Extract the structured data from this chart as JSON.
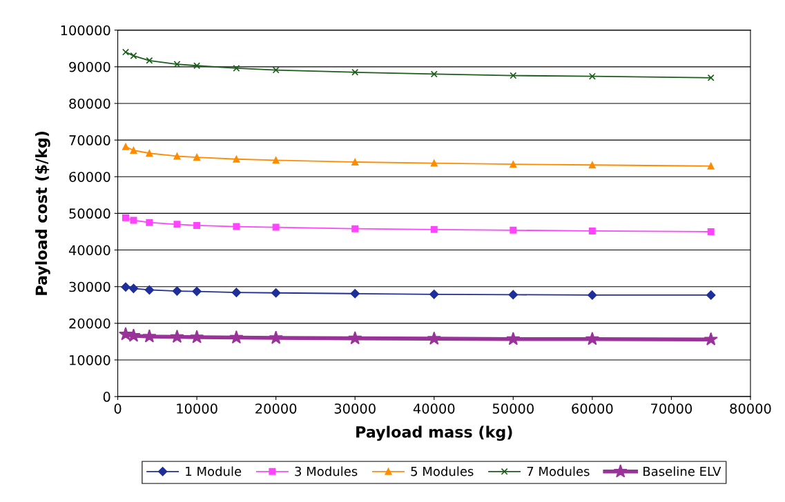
{
  "chart_data": {
    "type": "line",
    "xlabel": "Payload mass (kg)",
    "ylabel": "Payload cost ($/kg)",
    "x": [
      1000,
      2000,
      4000,
      7500,
      10000,
      15000,
      20000,
      30000,
      40000,
      50000,
      60000,
      75000
    ],
    "xlim": [
      0,
      80000
    ],
    "xticks": [
      0,
      10000,
      20000,
      30000,
      40000,
      50000,
      60000,
      70000,
      80000
    ],
    "ylim": [
      0,
      100000
    ],
    "yticks": [
      0,
      10000,
      20000,
      30000,
      40000,
      50000,
      60000,
      70000,
      80000,
      90000,
      100000
    ],
    "grid": "y",
    "legend": "bottom",
    "line_style": "solid",
    "series": [
      {
        "name": "1 Module",
        "color": "#1f2f9a",
        "marker": "diamond",
        "values": [
          29900,
          29500,
          29100,
          28800,
          28700,
          28400,
          28300,
          28100,
          27900,
          27800,
          27700,
          27700
        ]
      },
      {
        "name": "3 Modules",
        "color": "#ff44ff",
        "marker": "square",
        "values": [
          48800,
          48100,
          47500,
          47000,
          46700,
          46400,
          46200,
          45800,
          45600,
          45400,
          45200,
          45000
        ]
      },
      {
        "name": "5 Modules",
        "color": "#ff8c00",
        "marker": "triangle",
        "values": [
          68200,
          67200,
          66400,
          65600,
          65300,
          64800,
          64500,
          64000,
          63700,
          63400,
          63200,
          62900
        ]
      },
      {
        "name": "7 Modules",
        "color": "#1a5e1a",
        "marker": "cross",
        "values": [
          94000,
          93000,
          91700,
          90700,
          90300,
          89600,
          89100,
          88500,
          88000,
          87600,
          87400,
          87000
        ]
      },
      {
        "name": "Baseline ELV",
        "color": "#993399",
        "marker": "star",
        "values": [
          17000,
          16600,
          16400,
          16300,
          16200,
          16100,
          16000,
          15900,
          15800,
          15700,
          15700,
          15600
        ]
      }
    ]
  }
}
